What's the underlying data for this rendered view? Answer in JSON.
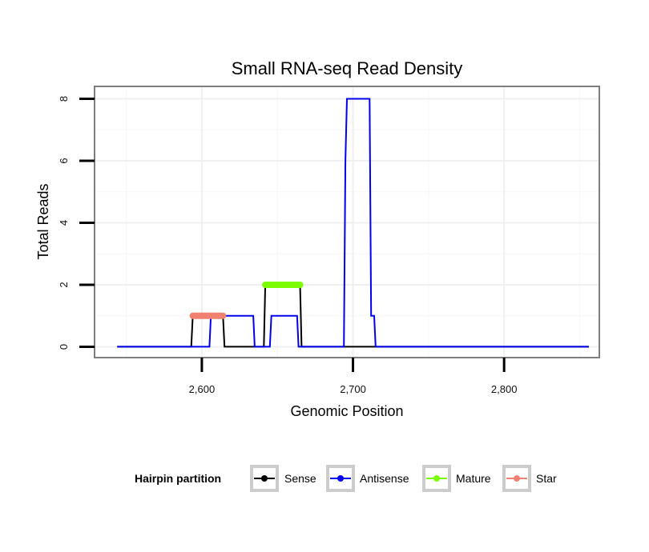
{
  "chart_data": {
    "type": "line",
    "title": "Small RNA-seq Read Density",
    "xlabel": "Genomic Position",
    "ylabel": "Total Reads",
    "xlim": [
      2529,
      2863
    ],
    "ylim": [
      -0.35,
      8.4
    ],
    "grid": true,
    "x_ticks": [
      2600,
      2700,
      2800
    ],
    "x_tick_labels": [
      "2,600",
      "2,700",
      "2,800"
    ],
    "y_ticks": [
      0,
      2,
      4,
      6,
      8
    ],
    "y_tick_labels": [
      "0",
      "2",
      "4",
      "6",
      "8"
    ],
    "legend": {
      "title": "Hairpin partition",
      "position": "bottom",
      "entries": [
        "Sense",
        "Antisense",
        "Mature",
        "Star"
      ]
    },
    "series": [
      {
        "name": "Sense",
        "color": "#000000",
        "x": [
          2544,
          2593,
          2594,
          2614,
          2615,
          2641,
          2642,
          2665,
          2666,
          2856
        ],
        "y": [
          0,
          0,
          1,
          1,
          0,
          0,
          2,
          2,
          0,
          0
        ]
      },
      {
        "name": "Antisense",
        "color": "#0000ee",
        "x": [
          2544,
          2605,
          2606,
          2634,
          2635,
          2645,
          2646,
          2663,
          2664,
          2694,
          2695,
          2696,
          2697,
          2711,
          2712,
          2714,
          2715,
          2856
        ],
        "y": [
          0,
          0,
          1,
          1,
          0,
          0,
          1,
          1,
          0,
          0,
          6,
          8,
          8,
          8,
          1,
          1,
          0,
          0
        ]
      },
      {
        "name": "Mature",
        "color": "#7cfc00",
        "x": [
          2642,
          2665
        ],
        "y": [
          2,
          2
        ]
      },
      {
        "name": "Star",
        "color": "#f08070",
        "x": [
          2594,
          2614
        ],
        "y": [
          1,
          1
        ]
      }
    ]
  }
}
